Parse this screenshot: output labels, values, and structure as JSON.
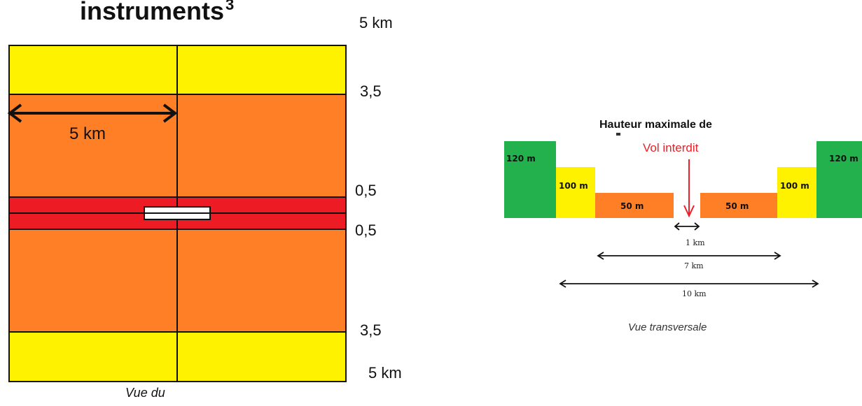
{
  "plan_view": {
    "title": "instruments",
    "title_superscript": "3",
    "band_labels": {
      "top_5km": "5 km",
      "top_3_5": "3,5",
      "upper_0_5": "0,5",
      "lower_0_5": "0,5",
      "bottom_3_5": "3,5",
      "bottom_5km": "5 km"
    },
    "width_dimension_label": "5 km",
    "caption": "Vue du",
    "colors": {
      "yellow": "#fff200",
      "orange": "#ff7f27",
      "red": "#ed1c24"
    }
  },
  "cross_section": {
    "title": "Hauteur maximale de",
    "heights": {
      "left_outer": "120 m",
      "left_middle": "100 m",
      "left_inner": "50 m",
      "right_inner": "50 m",
      "right_middle": "100 m",
      "right_outer": "120 m"
    },
    "forbidden_label": "Vol interdit",
    "dimensions": {
      "inner": "1 km",
      "middle": "7 km",
      "outer": "10 km"
    },
    "caption": "Vue transversale",
    "colors": {
      "green": "#22b14c",
      "yellow": "#fff200",
      "orange": "#ff7f27",
      "forbidden": "#e8212a"
    }
  }
}
